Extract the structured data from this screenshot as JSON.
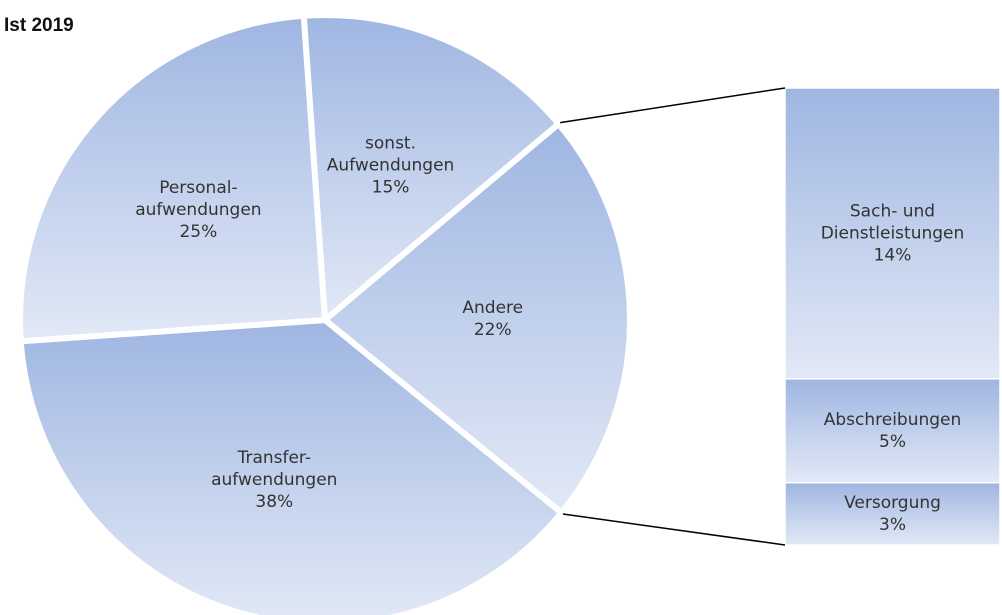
{
  "chart_data": {
    "type": "pie-of-bar",
    "title": "Ist 2019",
    "color": "#9fb6e2",
    "categories": [
      "sonst.\nAufwendungen",
      "Andere",
      "Transfer-\naufwendungen",
      "Personal-\naufwendungen"
    ],
    "values": [
      15,
      22,
      38,
      25
    ],
    "value_labels": [
      "15%",
      "22%",
      "38%",
      "25%"
    ],
    "breakdown": {
      "categories": [
        "Sach- und\nDienstleistungen",
        "Abschreibungen",
        "Versorgung"
      ],
      "values": [
        14,
        5,
        3
      ],
      "value_labels": [
        "14%",
        "5%",
        "3%"
      ]
    }
  }
}
